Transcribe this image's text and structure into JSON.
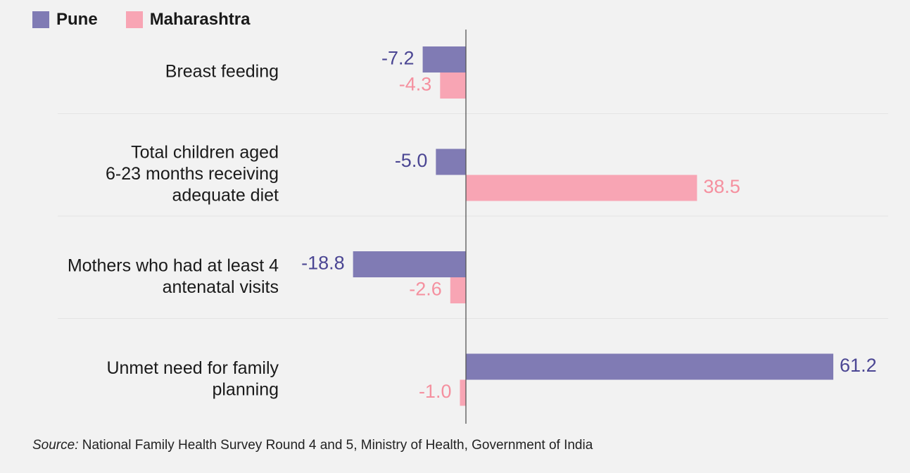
{
  "legend": [
    {
      "label": "Pune",
      "color": "#807bb4"
    },
    {
      "label": "Maharashtra",
      "color": "#f8a5b4"
    }
  ],
  "colors": {
    "pune_label": "#4b4693",
    "maharashtra_label": "#f5909f",
    "axis": "#555555",
    "separator": "#e4e4e4"
  },
  "chart_data": {
    "type": "bar",
    "orientation": "horizontal",
    "categories": [
      [
        "Breast feeding"
      ],
      [
        "Total children aged",
        "6-23 months receiving",
        "adequate diet"
      ],
      [
        "Mothers who had at least 4",
        "antenatal visits"
      ],
      [
        "Unmet need for family",
        "planning"
      ]
    ],
    "series": [
      {
        "name": "Pune",
        "values": [
          -7.2,
          -5.0,
          -18.8,
          61.2
        ]
      },
      {
        "name": "Maharashtra",
        "values": [
          -4.3,
          38.5,
          -2.6,
          -1.0
        ]
      }
    ],
    "value_labels": [
      [
        "-7.2",
        "-5.0",
        "-18.8",
        "61.2"
      ],
      [
        "-4.3",
        "38.5",
        "-2.6",
        "-1.0"
      ]
    ],
    "grid": false,
    "legend_position": "top-left"
  },
  "source": {
    "prefix": "Source:",
    "text": " National Family Health Survey Round 4 and 5, Ministry of Health, Government of India"
  }
}
